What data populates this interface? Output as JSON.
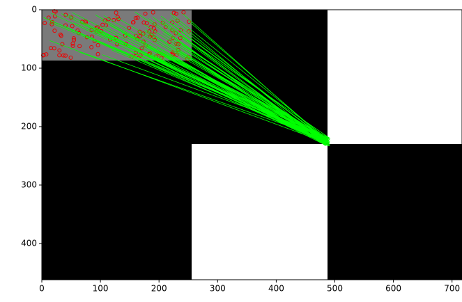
{
  "chart_data": {
    "type": "image",
    "xlim": [
      0,
      717
    ],
    "xticks": [
      0,
      100,
      200,
      300,
      400,
      500,
      600,
      700
    ],
    "ylim": [
      462,
      0
    ],
    "yticks": [
      0,
      100,
      200,
      300,
      400
    ]
  }
}
